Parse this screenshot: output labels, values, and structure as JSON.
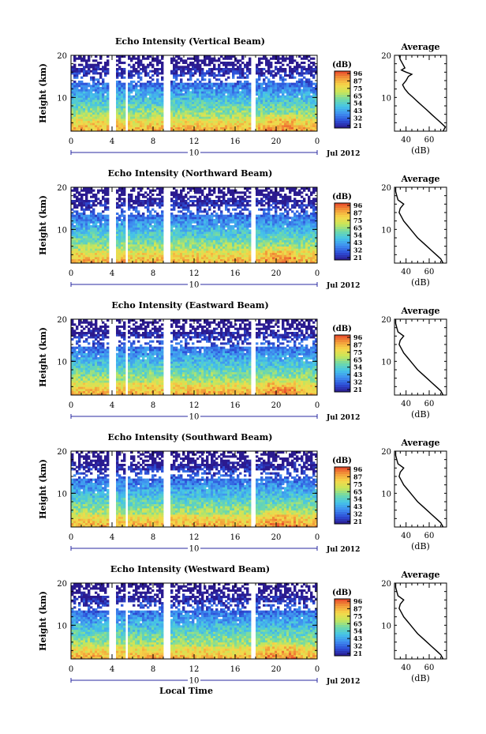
{
  "chart_data": {
    "type": "heatmap",
    "panels": [
      {
        "title": "Echo Intensity (Vertical Beam)",
        "ylabel": "Height (km)",
        "yticks": [
          "10",
          "20"
        ],
        "xticks": [
          "0",
          "4",
          "8",
          "12",
          "16",
          "20",
          "0"
        ],
        "xlim": [
          0,
          24
        ],
        "ylim": [
          2,
          20
        ],
        "date_marker": "10",
        "date_label": "Jul 2012",
        "colorbar": {
          "label": "(dB)",
          "ticks": [
            "96",
            "87",
            "75",
            "65",
            "54",
            "43",
            "32",
            "21"
          ],
          "range": [
            21,
            96
          ]
        },
        "average": {
          "title": "Average",
          "xlabel": "(dB)",
          "xticks": [
            "40",
            "60"
          ],
          "yticks": [
            "10",
            "20"
          ],
          "xlim": [
            30,
            75
          ],
          "heights": [
            2,
            3,
            4,
            5,
            6,
            7,
            8,
            9,
            10,
            11,
            12,
            13,
            14,
            15,
            15.5,
            16,
            16.5,
            17,
            18,
            19,
            20
          ],
          "values": [
            72,
            74,
            70,
            66,
            62,
            58,
            54,
            50,
            46,
            42,
            39,
            37,
            40,
            42,
            45,
            40,
            36,
            39,
            37,
            35,
            34
          ]
        }
      },
      {
        "title": "Echo Intensity (Northward Beam)",
        "ylabel": "Height (km)",
        "yticks": [
          "10",
          "20"
        ],
        "xticks": [
          "0",
          "4",
          "8",
          "12",
          "16",
          "20",
          "0"
        ],
        "xlim": [
          0,
          24
        ],
        "ylim": [
          2,
          20
        ],
        "date_marker": "10",
        "date_label": "Jul 2012",
        "colorbar": {
          "label": "(dB)",
          "ticks": [
            "96",
            "87",
            "75",
            "65",
            "54",
            "43",
            "32",
            "21"
          ],
          "range": [
            21,
            96
          ]
        },
        "average": {
          "title": "Average",
          "xlabel": "(dB)",
          "xticks": [
            "40",
            "60"
          ],
          "yticks": [
            "10",
            "20"
          ],
          "xlim": [
            30,
            75
          ],
          "heights": [
            2,
            3,
            4,
            5,
            6,
            7,
            8,
            9,
            10,
            11,
            12,
            13,
            14,
            15,
            16,
            17,
            18,
            19,
            20
          ],
          "values": [
            72,
            70,
            66,
            62,
            58,
            54,
            50,
            47,
            44,
            41,
            38,
            36,
            34,
            35,
            38,
            33,
            32,
            31,
            31
          ]
        }
      },
      {
        "title": "Echo Intensity (Eastward Beam)",
        "ylabel": "Height (km)",
        "yticks": [
          "10",
          "20"
        ],
        "xticks": [
          "0",
          "4",
          "8",
          "12",
          "16",
          "20",
          "0"
        ],
        "xlim": [
          0,
          24
        ],
        "ylim": [
          2,
          20
        ],
        "date_marker": "10",
        "date_label": "Jul 2012",
        "colorbar": {
          "label": "(dB)",
          "ticks": [
            "96",
            "87",
            "75",
            "65",
            "54",
            "43",
            "32",
            "21"
          ],
          "range": [
            21,
            96
          ]
        },
        "average": {
          "title": "Average",
          "xlabel": "(dB)",
          "xticks": [
            "40",
            "60"
          ],
          "yticks": [
            "10",
            "20"
          ],
          "xlim": [
            30,
            75
          ],
          "heights": [
            2,
            3,
            4,
            5,
            6,
            7,
            8,
            9,
            10,
            11,
            12,
            13,
            14,
            15,
            16,
            17,
            18,
            19,
            20
          ],
          "values": [
            72,
            70,
            66,
            62,
            58,
            54,
            50,
            47,
            44,
            41,
            38,
            36,
            34,
            35,
            38,
            33,
            32,
            31,
            31
          ]
        }
      },
      {
        "title": "Echo Intensity (Southward Beam)",
        "ylabel": "Height (km)",
        "yticks": [
          "10",
          "20"
        ],
        "xticks": [
          "0",
          "4",
          "8",
          "12",
          "16",
          "20",
          "0"
        ],
        "xlim": [
          0,
          24
        ],
        "ylim": [
          2,
          20
        ],
        "date_marker": "10",
        "date_label": "Jul 2012",
        "colorbar": {
          "label": "(dB)",
          "ticks": [
            "96",
            "87",
            "75",
            "65",
            "54",
            "43",
            "32",
            "21"
          ],
          "range": [
            21,
            96
          ]
        },
        "average": {
          "title": "Average",
          "xlabel": "(dB)",
          "xticks": [
            "40",
            "60"
          ],
          "yticks": [
            "10",
            "20"
          ],
          "xlim": [
            30,
            75
          ],
          "heights": [
            2,
            3,
            4,
            5,
            6,
            7,
            8,
            9,
            10,
            11,
            12,
            13,
            14,
            15,
            16,
            17,
            18,
            19,
            20
          ],
          "values": [
            72,
            70,
            66,
            62,
            58,
            54,
            50,
            47,
            44,
            41,
            38,
            36,
            34,
            35,
            38,
            33,
            32,
            31,
            31
          ]
        }
      },
      {
        "title": "Echo Intensity (Westward Beam)",
        "ylabel": "Height (km)",
        "yticks": [
          "10",
          "20"
        ],
        "xticks": [
          "0",
          "4",
          "8",
          "12",
          "16",
          "20",
          "0"
        ],
        "xlim": [
          0,
          24
        ],
        "ylim": [
          2,
          20
        ],
        "date_marker": "10",
        "date_label": "Jul 2012",
        "xlabel": "Local Time",
        "colorbar": {
          "label": "(dB)",
          "ticks": [
            "96",
            "87",
            "75",
            "65",
            "54",
            "43",
            "32",
            "21"
          ],
          "range": [
            21,
            96
          ]
        },
        "average": {
          "title": "Average",
          "xlabel": "(dB)",
          "xticks": [
            "40",
            "60"
          ],
          "yticks": [
            "10",
            "20"
          ],
          "xlim": [
            30,
            75
          ],
          "heights": [
            2,
            3,
            4,
            5,
            6,
            7,
            8,
            9,
            10,
            11,
            12,
            13,
            14,
            15,
            16,
            17,
            18,
            19,
            20
          ],
          "values": [
            72,
            70,
            66,
            62,
            58,
            54,
            50,
            47,
            44,
            41,
            38,
            36,
            34,
            35,
            38,
            33,
            32,
            31,
            31
          ]
        }
      }
    ],
    "data_gaps_hours": [
      [
        3.7,
        4.3
      ],
      [
        5.2,
        5.6
      ],
      [
        9.0,
        9.7
      ],
      [
        17.5,
        17.9
      ]
    ]
  },
  "colors": {
    "scale": [
      "#2b1a8f",
      "#2d4fd8",
      "#3f8ff0",
      "#45c4e8",
      "#6fd9a8",
      "#c8e65a",
      "#f5d84a",
      "#f29b3a",
      "#e8452a"
    ]
  }
}
